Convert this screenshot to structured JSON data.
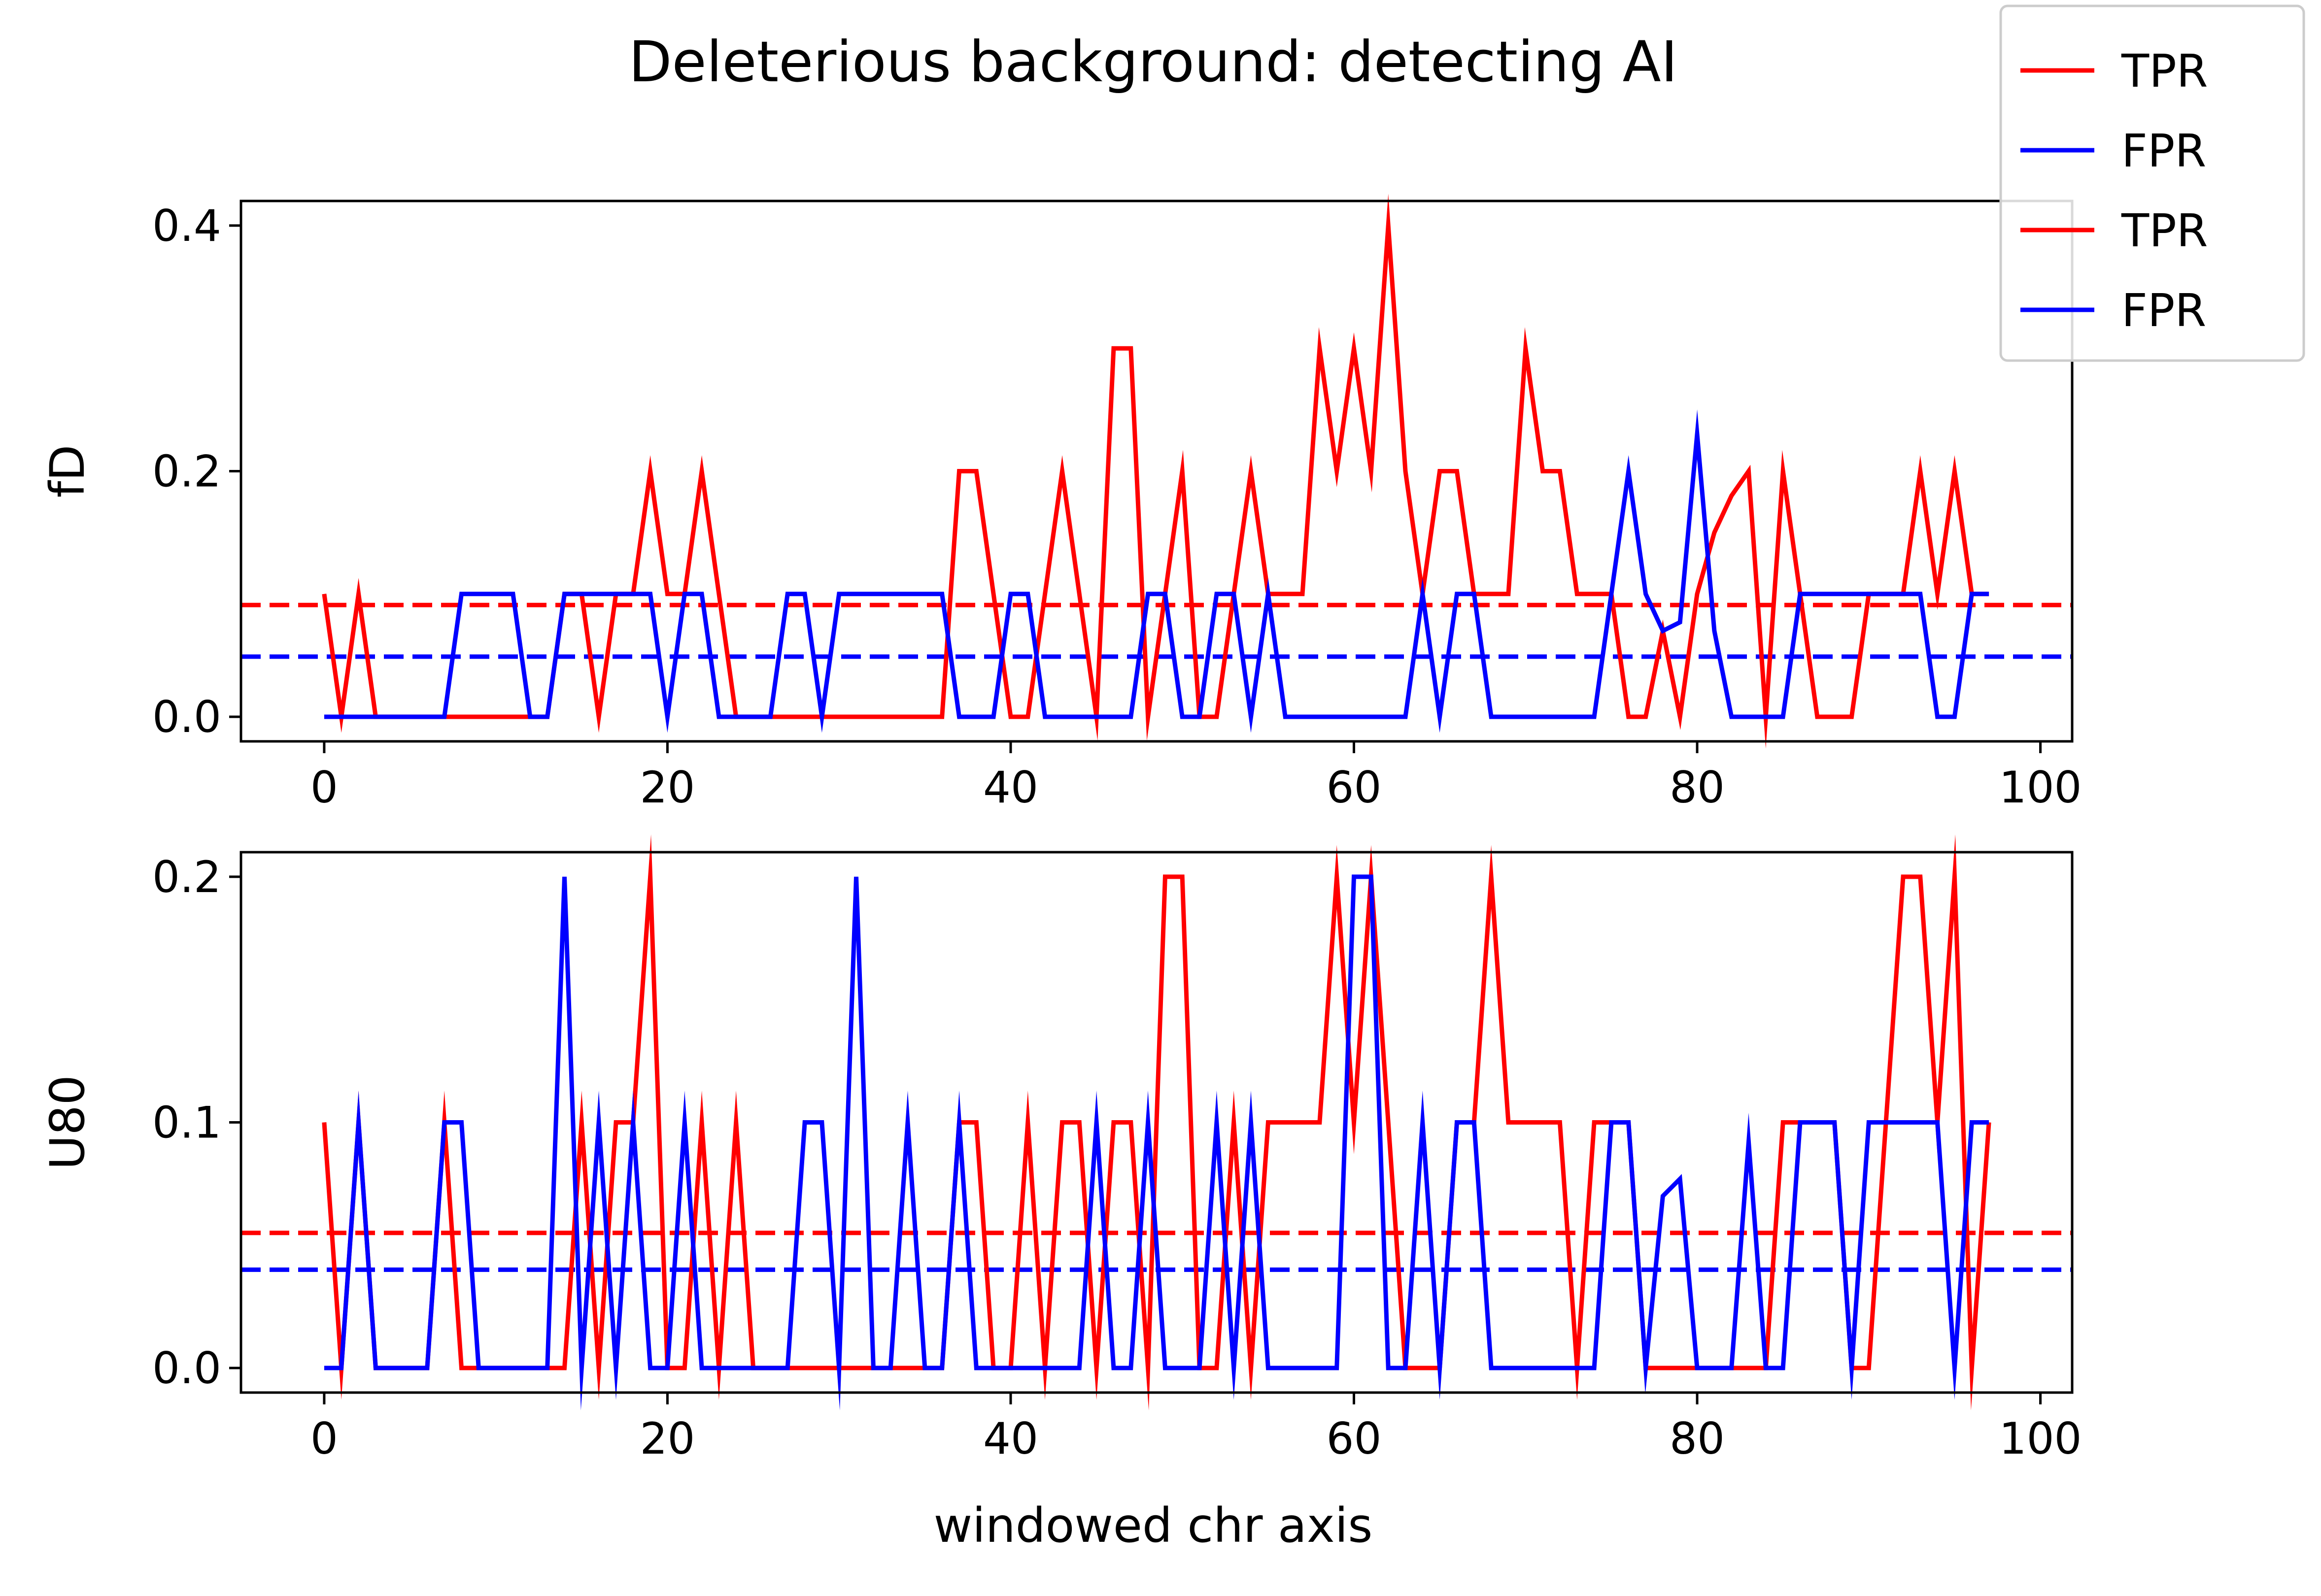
{
  "chart_data": {
    "type": "line",
    "title": "Deleterious background: detecting AI",
    "xlabel": "windowed chr axis",
    "legend": {
      "placement": "top-right",
      "entries": [
        {
          "label": "TPR",
          "color": "#ff0000"
        },
        {
          "label": "FPR",
          "color": "#0000ff"
        },
        {
          "label": "TPR",
          "color": "#ff0000"
        },
        {
          "label": "FPR",
          "color": "#0000ff"
        }
      ]
    },
    "panels": [
      {
        "ylabel": "fD",
        "xlim": [
          -4.85,
          101.85
        ],
        "ylim": [
          -0.02,
          0.42
        ],
        "xticks": [
          0,
          20,
          40,
          60,
          80,
          100
        ],
        "xtick_labels": [
          "0",
          "20",
          "40",
          "60",
          "80",
          "100"
        ],
        "yticks": [
          0.0,
          0.2,
          0.4
        ],
        "ytick_labels": [
          "0.0",
          "0.2",
          "0.4"
        ],
        "hlines": [
          {
            "name": "TPR",
            "y": 0.091,
            "color": "#ff0000"
          },
          {
            "name": "FPR",
            "y": 0.049,
            "color": "#0000ff"
          }
        ],
        "series": [
          {
            "name": "TPR",
            "color": "#ff0000",
            "values": [
              0.1,
              0,
              0.1,
              0,
              0,
              0,
              0,
              0,
              0,
              0,
              0,
              0,
              0,
              0,
              0.1,
              0.1,
              0,
              0.1,
              0.1,
              0.2,
              0.1,
              0.1,
              0.2,
              0.1,
              0,
              0,
              0,
              0,
              0,
              0,
              0,
              0,
              0,
              0,
              0,
              0,
              0,
              0.2,
              0.2,
              0.1,
              0,
              0,
              0.1,
              0.2,
              0.1,
              0,
              0.3,
              0.3,
              0,
              0.1,
              0.2,
              0,
              0,
              0.1,
              0.2,
              0.1,
              0.1,
              0.1,
              0.3,
              0.2,
              0.3,
              0.2,
              0.4,
              0.2,
              0.1,
              0.2,
              0.2,
              0.1,
              0.1,
              0.1,
              0.3,
              0.2,
              0.2,
              0.1,
              0.1,
              0.1,
              0,
              0,
              0.07,
              0,
              0.1,
              0.15,
              0.18,
              0.2,
              0,
              0.2,
              0.1,
              0,
              0,
              0,
              0.1,
              0.1,
              0.1,
              0.2,
              0.1,
              0.2,
              0.1,
              0.1
            ]
          },
          {
            "name": "FPR",
            "color": "#0000ff",
            "values": [
              0,
              0,
              0,
              0,
              0,
              0,
              0,
              0,
              0.1,
              0.1,
              0.1,
              0.1,
              0,
              0,
              0.1,
              0.1,
              0.1,
              0.1,
              0.1,
              0.1,
              0,
              0.1,
              0.1,
              0,
              0,
              0,
              0,
              0.1,
              0.1,
              0,
              0.1,
              0.1,
              0.1,
              0.1,
              0.1,
              0.1,
              0.1,
              0,
              0,
              0,
              0.1,
              0.1,
              0,
              0,
              0,
              0,
              0,
              0,
              0.1,
              0.1,
              0,
              0,
              0.1,
              0.1,
              0,
              0.1,
              0,
              0,
              0,
              0,
              0,
              0,
              0,
              0,
              0.1,
              0,
              0.1,
              0.1,
              0,
              0,
              0,
              0,
              0,
              0,
              0,
              0.1,
              0.2,
              0.1,
              0.07,
              0.077,
              0.23,
              0.07,
              0,
              0,
              0,
              0,
              0.1,
              0.1,
              0.1,
              0.1,
              0.1,
              0.1,
              0.1,
              0.1,
              0,
              0,
              0.1,
              0.1
            ]
          }
        ]
      },
      {
        "ylabel": "U80",
        "xlim": [
          -4.85,
          101.85
        ],
        "ylim": [
          -0.01,
          0.21
        ],
        "xticks": [
          0,
          20,
          40,
          60,
          80,
          100
        ],
        "xtick_labels": [
          "0",
          "20",
          "40",
          "60",
          "80",
          "100"
        ],
        "yticks": [
          0.0,
          0.1,
          0.2
        ],
        "ytick_labels": [
          "0.0",
          "0.1",
          "0.2"
        ],
        "hlines": [
          {
            "name": "TPR",
            "y": 0.055,
            "color": "#ff0000"
          },
          {
            "name": "FPR",
            "y": 0.04,
            "color": "#0000ff"
          }
        ],
        "series": [
          {
            "name": "TPR",
            "color": "#ff0000",
            "values": [
              0.1,
              0,
              0.1,
              0,
              0,
              0,
              0,
              0.1,
              0,
              0,
              0,
              0,
              0,
              0,
              0,
              0.1,
              0,
              0.1,
              0.1,
              0.2,
              0,
              0,
              0.1,
              0,
              0.1,
              0,
              0,
              0,
              0,
              0,
              0,
              0,
              0,
              0,
              0,
              0,
              0,
              0.1,
              0.1,
              0,
              0,
              0.1,
              0,
              0.1,
              0.1,
              0,
              0.1,
              0.1,
              0,
              0.2,
              0.2,
              0,
              0,
              0.1,
              0,
              0.1,
              0.1,
              0.1,
              0.1,
              0.2,
              0.1,
              0.2,
              0.1,
              0,
              0,
              0,
              0.1,
              0.1,
              0.2,
              0.1,
              0.1,
              0.1,
              0.1,
              0,
              0.1,
              0.1,
              0.1,
              0,
              0,
              0,
              0,
              0,
              0,
              0,
              0,
              0.1,
              0.1,
              0.1,
              0.1,
              0,
              0,
              0.1,
              0.2,
              0.2,
              0.1,
              0.2,
              0,
              0.1
            ]
          },
          {
            "name": "FPR",
            "color": "#0000ff",
            "values": [
              0,
              0,
              0.1,
              0,
              0,
              0,
              0,
              0.1,
              0.1,
              0,
              0,
              0,
              0,
              0,
              0.2,
              0,
              0.1,
              0,
              0.1,
              0,
              0,
              0.1,
              0,
              0,
              0,
              0,
              0,
              0,
              0.1,
              0.1,
              0,
              0.2,
              0,
              0,
              0.1,
              0,
              0,
              0.1,
              0,
              0,
              0,
              0,
              0,
              0,
              0,
              0.1,
              0,
              0,
              0.1,
              0,
              0,
              0,
              0.1,
              0,
              0.1,
              0,
              0,
              0,
              0,
              0,
              0.2,
              0.2,
              0,
              0,
              0.1,
              0,
              0.1,
              0.1,
              0,
              0,
              0,
              0,
              0,
              0,
              0,
              0.1,
              0.1,
              0,
              0.07,
              0.077,
              0,
              0,
              0,
              0.092,
              0,
              0,
              0.1,
              0.1,
              0.1,
              0,
              0.1,
              0.1,
              0.1,
              0.1,
              0.1,
              0,
              0.1,
              0.1
            ]
          }
        ]
      }
    ]
  }
}
